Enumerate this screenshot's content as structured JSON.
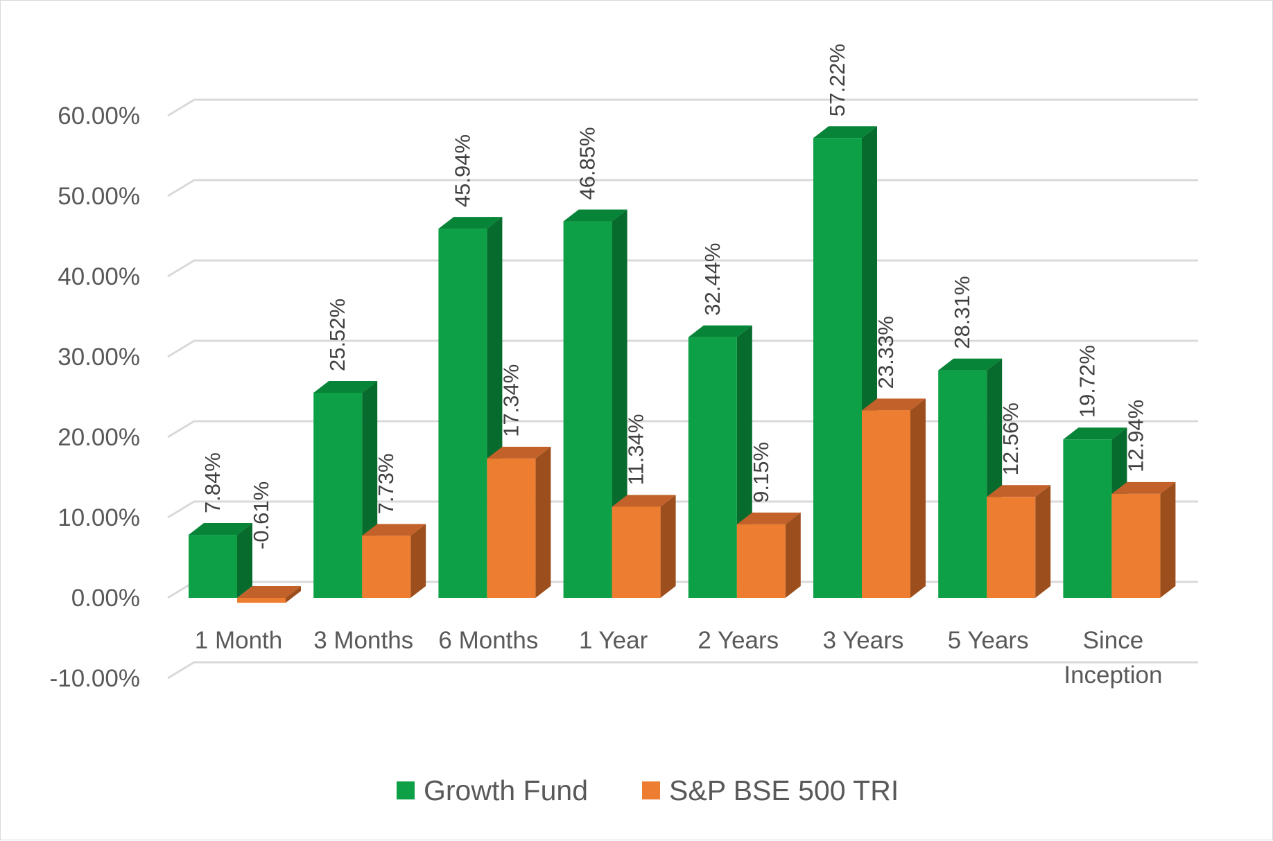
{
  "chart_data": {
    "type": "bar",
    "categories": [
      "1 Month",
      "3 Months",
      "6 Months",
      "1 Year",
      "2 Years",
      "3 Years",
      "5 Years",
      "Since Inception"
    ],
    "series": [
      {
        "name": "Growth Fund",
        "values": [
          7.84,
          25.52,
          45.94,
          46.85,
          32.44,
          57.22,
          28.31,
          19.72
        ],
        "labels": [
          "7.84%",
          "25.52%",
          "45.94%",
          "46.85%",
          "32.44%",
          "57.22%",
          "28.31%",
          "19.72%"
        ],
        "color": "#0ea046",
        "side_color": "#066b2d",
        "top_color": "#078437"
      },
      {
        "name": "S&P BSE 500 TRI",
        "values": [
          -0.61,
          7.73,
          17.34,
          11.34,
          9.15,
          23.33,
          12.56,
          12.94
        ],
        "labels": [
          "-0.61%",
          "7.73%",
          "17.34%",
          "11.34%",
          "9.15%",
          "23.33%",
          "12.56%",
          "12.94%"
        ],
        "color": "#ed7d31",
        "side_color": "#9c4f1d",
        "top_color": "#c2612a"
      }
    ],
    "yticks": [
      -10,
      0,
      10,
      20,
      30,
      40,
      50,
      60
    ],
    "ytick_labels": [
      "-10.00%",
      "0.00%",
      "10.00%",
      "20.00%",
      "30.00%",
      "40.00%",
      "50.00%",
      "60.00%"
    ],
    "ylim": [
      -10,
      60
    ],
    "title": "",
    "xlabel": "",
    "ylabel": "",
    "grid": true,
    "legend": "bottom",
    "style": "3d-clustered-column"
  }
}
